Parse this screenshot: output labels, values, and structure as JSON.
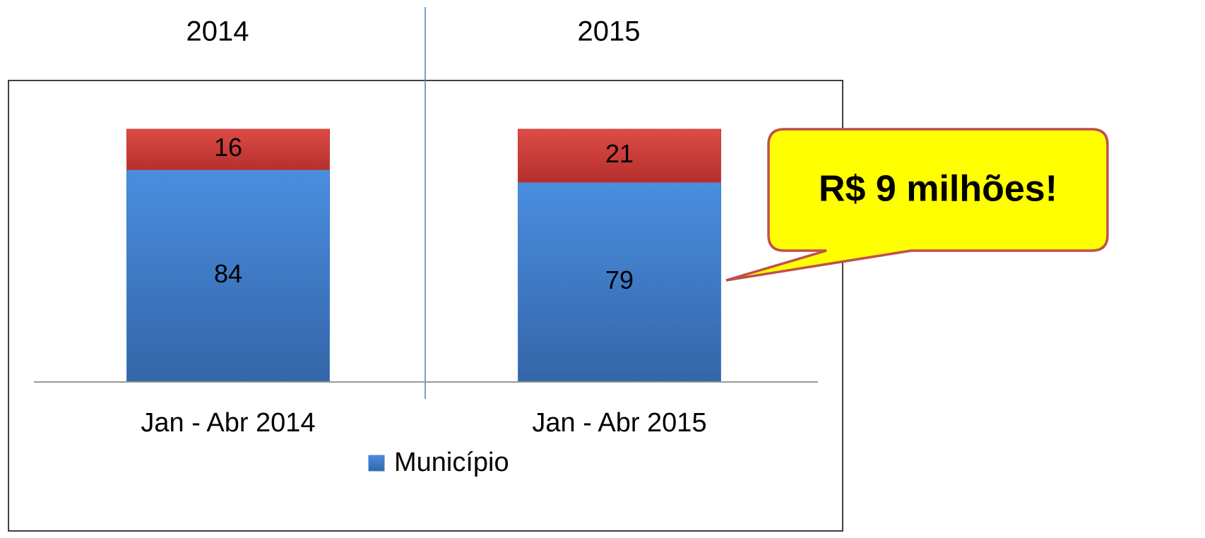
{
  "chart_data": {
    "type": "bar",
    "stacked": true,
    "annotations": [
      "2014",
      "2015",
      "R$ 9 milhões!"
    ],
    "categories": [
      "Jan - Abr 2014",
      "Jan - Abr 2015"
    ],
    "series": [
      {
        "name": "Município",
        "color": "#3f7fd0",
        "values": [
          84,
          79
        ]
      },
      {
        "color": "#c93a36",
        "values": [
          16,
          21
        ]
      }
    ],
    "ylim": [
      0,
      100
    ],
    "legend": "bottom"
  }
}
